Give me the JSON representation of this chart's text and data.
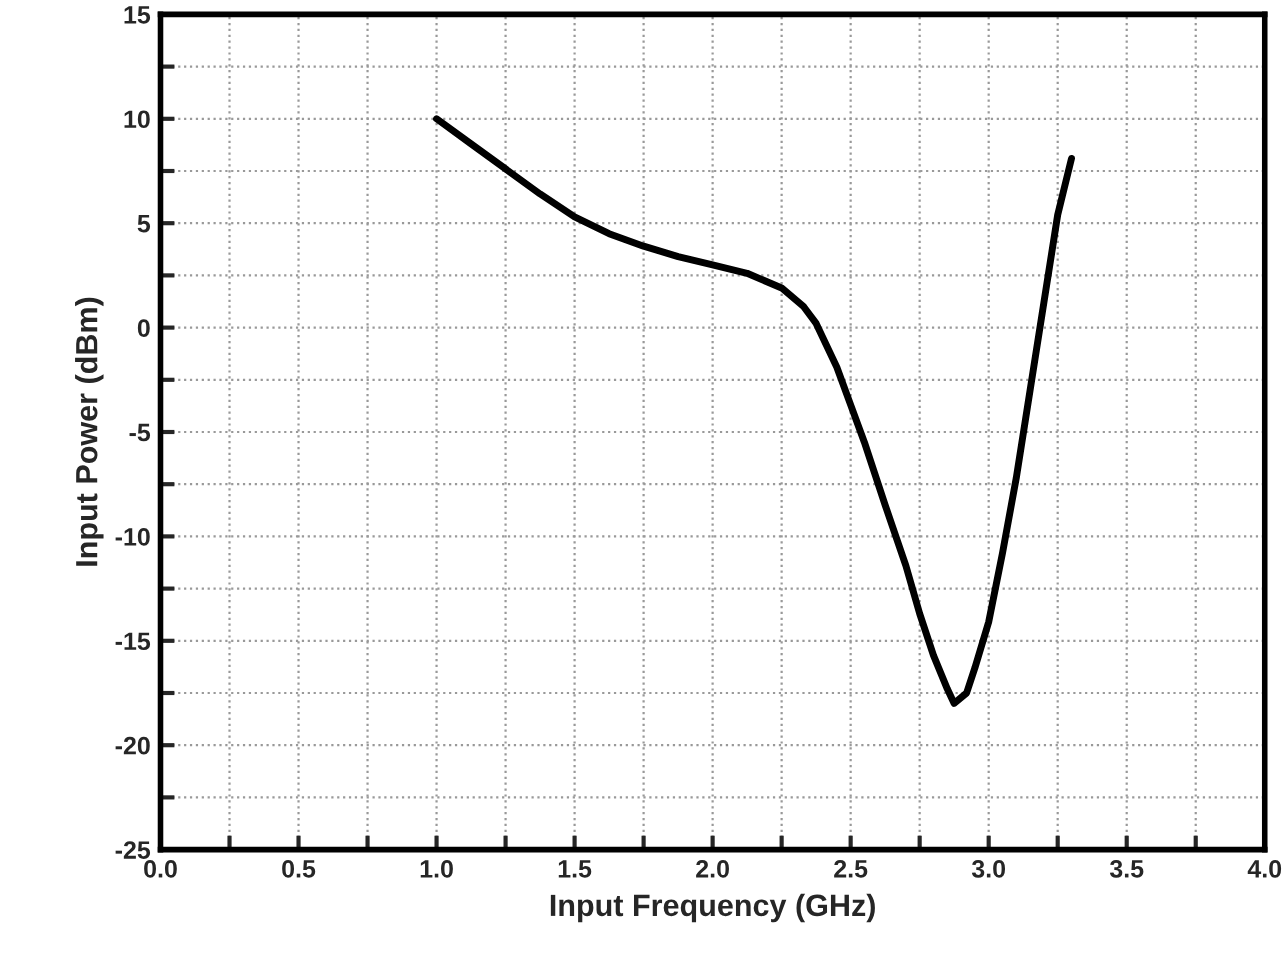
{
  "chart_data": {
    "type": "line",
    "xlabel": "Input Frequency (GHz)",
    "ylabel": "Input Power (dBm)",
    "xlim": [
      0.0,
      4.0
    ],
    "ylim": [
      -25,
      15
    ],
    "xticks": [
      "0.0",
      {
        "value": 0.25,
        "label": null
      },
      0.5,
      {
        "value": 0.75,
        "label": null
      },
      "1.0",
      {
        "value": 1.25,
        "label": null
      },
      1.5,
      {
        "value": 1.75,
        "label": null
      },
      "2.0",
      {
        "value": 2.25,
        "label": null
      },
      2.5,
      {
        "value": 2.75,
        "label": null
      },
      "3.0",
      {
        "value": 3.25,
        "label": null
      },
      3.5,
      {
        "value": 3.75,
        "label": null
      },
      "4.0"
    ],
    "yticks": [
      -25,
      {
        "value": -22.5,
        "label": null
      },
      -20,
      {
        "value": -17.5,
        "label": null
      },
      -15,
      {
        "value": -12.5,
        "label": null
      },
      -10,
      {
        "value": -7.5,
        "label": null
      },
      -5,
      {
        "value": -2.5,
        "label": null
      },
      0,
      {
        "value": 2.5,
        "label": null
      },
      5,
      {
        "value": 7.5,
        "label": null
      },
      10,
      {
        "value": 12.5,
        "label": null
      },
      15
    ],
    "grid": true,
    "marker": "none",
    "line_style": "solid",
    "x": [
      1.0,
      1.125,
      1.25,
      1.375,
      1.5,
      1.625,
      1.75,
      1.875,
      2.0,
      2.125,
      2.25,
      2.33,
      2.375,
      2.45,
      2.5,
      2.55,
      2.625,
      2.7,
      2.75,
      2.8,
      2.85,
      2.875,
      2.92,
      2.95,
      3.0,
      3.05,
      3.1,
      3.15,
      3.2,
      3.25,
      3.3
    ],
    "series": [
      {
        "color": "#000000",
        "values": [
          10,
          8.8,
          7.6,
          6.4,
          5.3,
          4.5,
          3.9,
          3.4,
          3.0,
          2.6,
          1.9,
          1.0,
          0.2,
          -1.9,
          -3.7,
          -5.5,
          -8.5,
          -11.4,
          -13.7,
          -15.7,
          -17.3,
          -18.0,
          -17.5,
          -16.3,
          -14.1,
          -10.8,
          -7.2,
          -3.0,
          1.2,
          5.4,
          8.1
        ]
      }
    ]
  }
}
